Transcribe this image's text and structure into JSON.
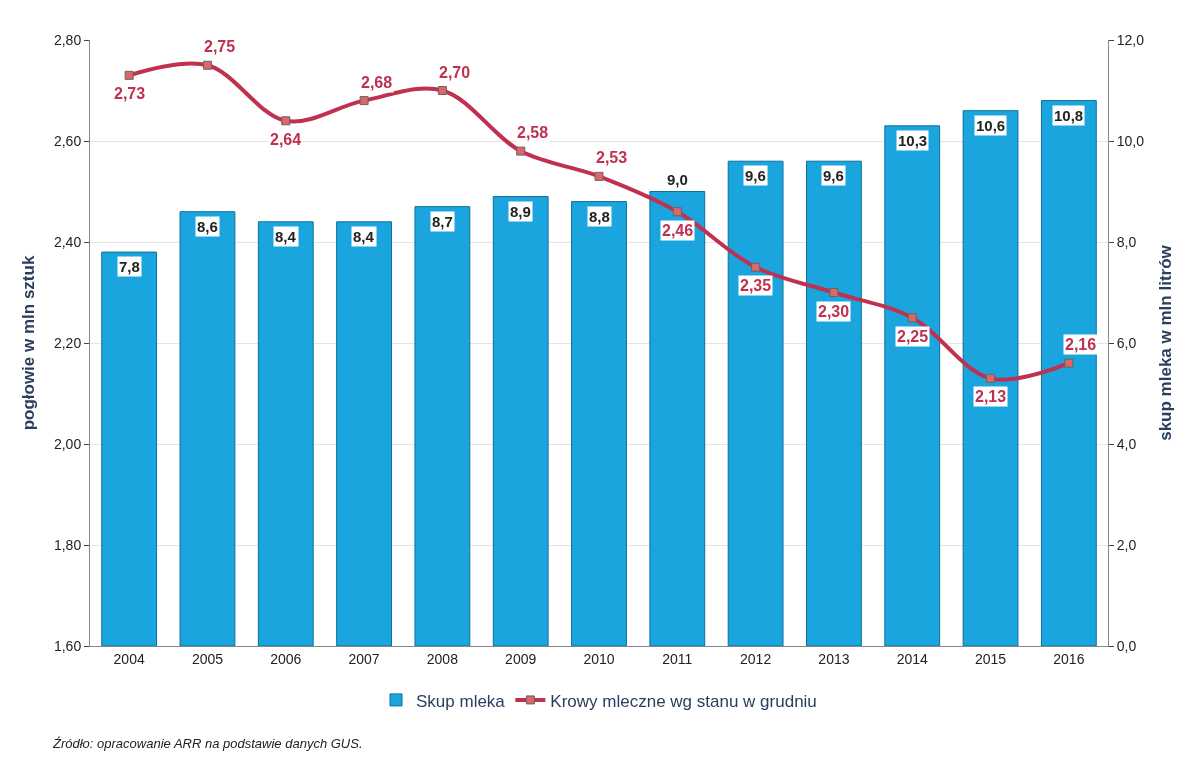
{
  "chart_data": {
    "type": "bar",
    "categories": [
      "2004",
      "2005",
      "2006",
      "2007",
      "2008",
      "2009",
      "2010",
      "2011",
      "2012",
      "2013",
      "2014",
      "2015",
      "2016"
    ],
    "ylabel": "pogłowie w mln sztuk",
    "y2label": "skup mleka w mln litrów",
    "ylim": [
      1.6,
      2.8
    ],
    "yticks": [
      {
        "value": 1.6,
        "label": "1,60"
      },
      {
        "value": 1.8,
        "label": "1,80"
      },
      {
        "value": 2.0,
        "label": "2,00"
      },
      {
        "value": 2.2,
        "label": "2,20"
      },
      {
        "value": 2.4,
        "label": "2,40"
      },
      {
        "value": 2.6,
        "label": "2,60"
      },
      {
        "value": 2.8,
        "label": "2,80"
      }
    ],
    "y2lim": [
      0,
      12
    ],
    "y2ticks": [
      {
        "value": 0,
        "label": "0,0"
      },
      {
        "value": 2,
        "label": "2,0"
      },
      {
        "value": 4,
        "label": "4,0"
      },
      {
        "value": 6,
        "label": "6,0"
      },
      {
        "value": 8,
        "label": "8,0"
      },
      {
        "value": 10,
        "label": "10,0"
      },
      {
        "value": 12,
        "label": "12,0"
      }
    ],
    "series": [
      {
        "name": "Skup mleka",
        "axis": "y2",
        "color": "#1ba5de",
        "values": [
          7.8,
          8.6,
          8.4,
          8.4,
          8.7,
          8.9,
          8.8,
          9.0,
          9.6,
          9.6,
          10.3,
          10.6,
          10.8
        ],
        "value_labels": [
          "7,8",
          "8,6",
          "8,4",
          "8,4",
          "8,7",
          "8,9",
          "8,8",
          "9,0",
          "9,6",
          "9,6",
          "10,3",
          "10,6",
          "10,8"
        ]
      },
      {
        "name": "Krowy mleczne wg stanu w grudniu",
        "type": "line",
        "axis": "y",
        "color": "#c0304f",
        "marker": "square",
        "values": [
          2.73,
          2.75,
          2.64,
          2.68,
          2.7,
          2.58,
          2.53,
          2.46,
          2.35,
          2.3,
          2.25,
          2.13,
          2.16
        ],
        "value_labels": [
          "2,73",
          "2,75",
          "2,64",
          "2,68",
          "2,70",
          "2,58",
          "2,53",
          "2,46",
          "2,35",
          "2,30",
          "2,25",
          "2,13",
          "2,16"
        ]
      }
    ],
    "grid": "y",
    "legend": "bottom",
    "annotations": [
      "Źródło: opracowanie ARR na podstawie danych GUS."
    ]
  }
}
